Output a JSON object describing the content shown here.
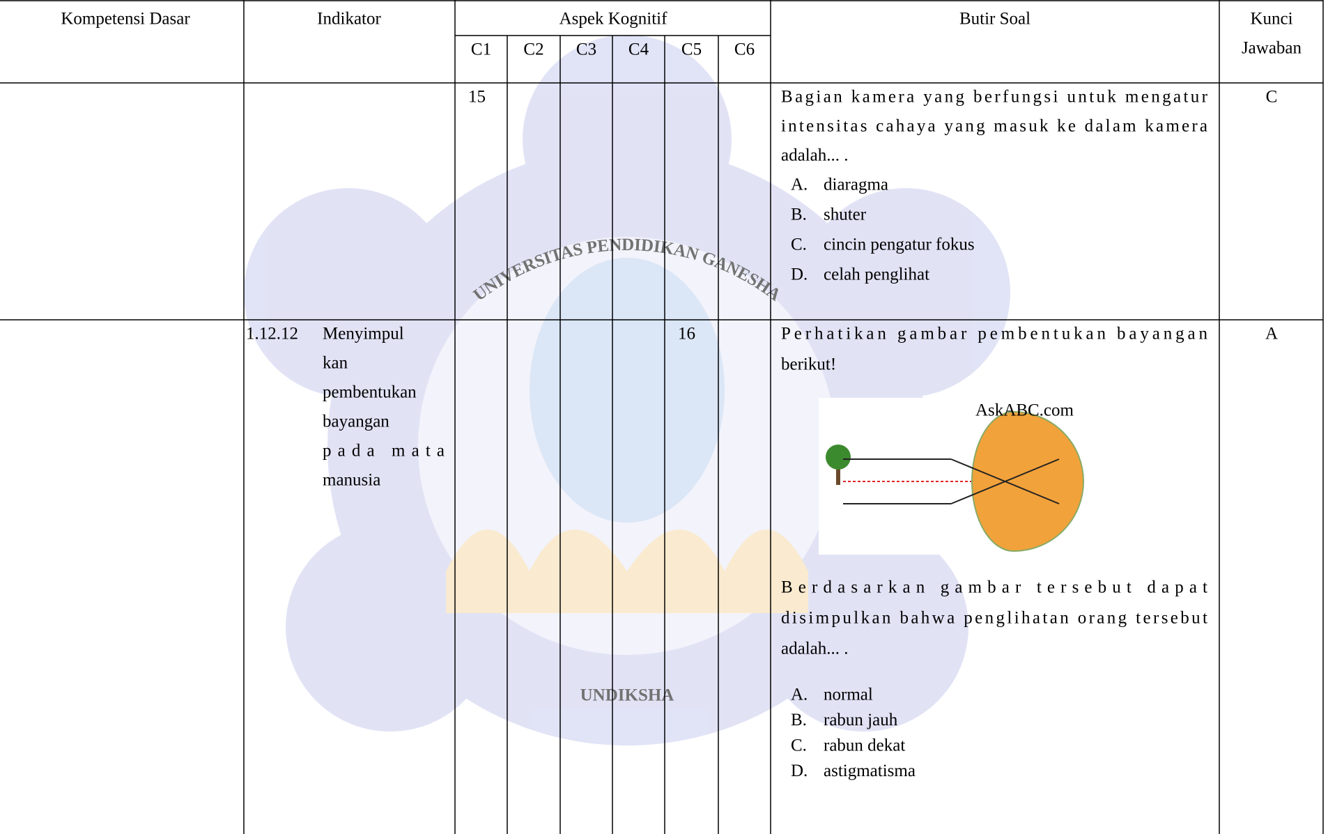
{
  "watermark": {
    "top": "UNIVERSITAS PENDIDIKAN GANESHA",
    "bottom": "UNDIKSHA"
  },
  "table": {
    "headers": {
      "kompetensi_dasar": "Kompetensi Dasar",
      "indikator": "Indikator",
      "aspek": "Aspek Kognitif",
      "levels": [
        "C1",
        "C2",
        "C3",
        "C4",
        "C5",
        "C6"
      ],
      "butir_soal": "Butir Soal",
      "kunci": [
        "Kunci",
        "Jawaban"
      ]
    },
    "rows": [
      {
        "indikator_number": null,
        "indikator_lines": [],
        "item_number": "15",
        "question_lines": [
          "Bagian kamera yang berfungsi untuk mengatur",
          "intensitas cahaya yang masuk ke dalam kamera",
          "adalah... ."
        ],
        "options": [
          [
            "A.",
            "diaragma"
          ],
          [
            "B.",
            "shuter"
          ],
          [
            "C.",
            "cincin pengatur fokus"
          ],
          [
            "D.",
            "celah penglihat"
          ]
        ],
        "key": "C"
      },
      {
        "indikator_number": "1.12.12",
        "indikator_lines": [
          "Menyimpul",
          "kan",
          "pembentukan",
          "bayangan",
          "pada mata",
          "manusia"
        ],
        "item_number": "16",
        "question_lines": [
          "Perhatikan gambar pembentukan bayangan",
          "berikut!"
        ],
        "image_caption": "AskABC.com",
        "question_lines_after": [
          "Berdasarkan gambar tersebut dapat",
          "disimpulkan bahwa penglihatan orang tersebut",
          "adalah... ."
        ],
        "options": [
          [
            "A.",
            "normal"
          ],
          [
            "B.",
            "rabun jauh"
          ],
          [
            "C.",
            "rabun dekat"
          ],
          [
            "D.",
            "astigmatisma"
          ]
        ],
        "key": "A"
      }
    ]
  }
}
